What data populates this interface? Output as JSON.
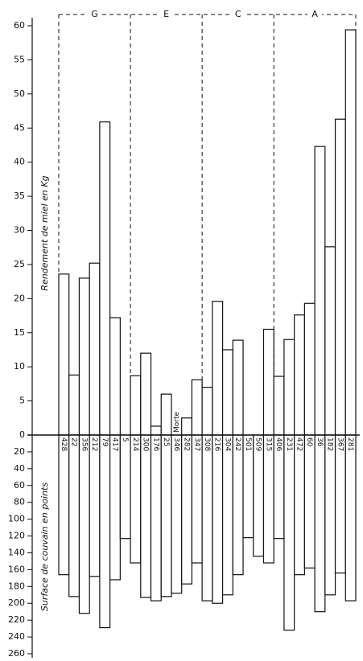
{
  "chart_data": {
    "type": "bar",
    "y_label": "Rendement de miel en Kg",
    "y2_label": "Surface de couvain en points",
    "groups": [
      {
        "label": "G",
        "categories": [
          "428",
          "22",
          "356",
          "212",
          "79",
          "417",
          "5"
        ]
      },
      {
        "label": "E",
        "categories": [
          "214",
          "300",
          "176",
          "25",
          "346",
          "282",
          "347"
        ]
      },
      {
        "label": "C",
        "categories": [
          "308",
          "216",
          "304",
          "242",
          "501",
          "509",
          "315"
        ]
      },
      {
        "label": "A",
        "categories": [
          "406",
          "231",
          "472",
          "60",
          "36",
          "182",
          "367",
          "281"
        ]
      }
    ],
    "series": [
      {
        "color": "#111111",
        "values": [
          23.6,
          8.8,
          23,
          25.2,
          45.9,
          17.2,
          0,
          8.7,
          12,
          1.3,
          6,
          null,
          2.5,
          8.1,
          7,
          19.6,
          12.5,
          13.9,
          0,
          0,
          15.5,
          8.6,
          14,
          17.6,
          19.3,
          42.3,
          27.6,
          46.3,
          59.4
        ]
      },
      {
        "color": "#111111",
        "axis": "y2",
        "values": [
          166,
          192,
          212,
          168,
          229,
          172,
          123,
          152,
          193,
          197,
          192,
          188,
          177,
          152,
          197,
          200,
          190,
          166,
          122,
          144,
          152,
          123,
          232,
          166,
          158,
          210,
          190,
          164,
          197
        ]
      }
    ],
    "annotations": [
      {
        "text": "Morte",
        "category": "346"
      }
    ],
    "ylim": [
      0,
      60
    ],
    "yticks": [
      0,
      5,
      10,
      15,
      20,
      25,
      30,
      35,
      40,
      45,
      50,
      55,
      60
    ],
    "y2lim": [
      0,
      260
    ],
    "y2ticks": [
      20,
      40,
      60,
      80,
      100,
      120,
      140,
      160,
      180,
      200,
      220,
      240,
      260
    ]
  }
}
